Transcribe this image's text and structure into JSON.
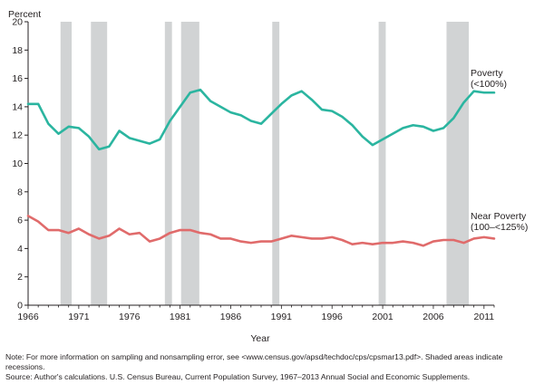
{
  "chart_data": {
    "type": "line",
    "ylabel": "Percent",
    "xlabel": "Year",
    "ylim": [
      0,
      20
    ],
    "xlim": [
      1966,
      2012
    ],
    "yticks": [
      0,
      2,
      4,
      6,
      8,
      10,
      12,
      14,
      16,
      18,
      20
    ],
    "xticks": [
      1966,
      1971,
      1976,
      1981,
      1986,
      1991,
      1996,
      2001,
      2006,
      2011
    ],
    "grid": false,
    "recessions": [
      [
        1969.2,
        1970.3
      ],
      [
        1972.2,
        1973.8
      ],
      [
        1979.5,
        1980.2
      ],
      [
        1981.1,
        1982.9
      ],
      [
        1990.1,
        1990.8
      ],
      [
        2000.6,
        2001.3
      ],
      [
        2007.3,
        2009.5
      ]
    ],
    "colors": {
      "poverty": "#2bb5a0",
      "near_poverty": "#e06b6b",
      "recession": "#d1d3d4"
    },
    "x": [
      1966,
      1967,
      1968,
      1969,
      1970,
      1971,
      1972,
      1973,
      1974,
      1975,
      1976,
      1977,
      1978,
      1979,
      1980,
      1981,
      1982,
      1983,
      1984,
      1985,
      1986,
      1987,
      1988,
      1989,
      1990,
      1991,
      1992,
      1993,
      1994,
      1995,
      1996,
      1997,
      1998,
      1999,
      2000,
      2001,
      2002,
      2003,
      2004,
      2005,
      2006,
      2007,
      2008,
      2009,
      2010,
      2011,
      2012
    ],
    "series": [
      {
        "name": "Poverty",
        "label_lines": [
          "Poverty",
          "(<100%)"
        ],
        "values": [
          14.2,
          14.2,
          12.8,
          12.1,
          12.6,
          12.5,
          11.9,
          11.0,
          11.2,
          12.3,
          11.8,
          11.6,
          11.4,
          11.7,
          13.0,
          14.0,
          15.0,
          15.2,
          14.4,
          14.0,
          13.6,
          13.4,
          13.0,
          12.8,
          13.5,
          14.2,
          14.8,
          15.1,
          14.5,
          13.8,
          13.7,
          13.3,
          12.7,
          11.9,
          11.3,
          11.7,
          12.1,
          12.5,
          12.7,
          12.6,
          12.3,
          12.5,
          13.2,
          14.3,
          15.1,
          15.0,
          15.0
        ]
      },
      {
        "name": "Near Poverty",
        "label_lines": [
          "Near Poverty",
          "(100–<125%)"
        ],
        "values": [
          6.3,
          5.9,
          5.3,
          5.3,
          5.1,
          5.4,
          5.0,
          4.7,
          4.9,
          5.4,
          5.0,
          5.1,
          4.5,
          4.7,
          5.1,
          5.3,
          5.3,
          5.1,
          5.0,
          4.7,
          4.7,
          4.5,
          4.4,
          4.5,
          4.5,
          4.7,
          4.9,
          4.8,
          4.7,
          4.7,
          4.8,
          4.6,
          4.3,
          4.4,
          4.3,
          4.4,
          4.4,
          4.5,
          4.4,
          4.2,
          4.5,
          4.6,
          4.6,
          4.4,
          4.7,
          4.8,
          4.7
        ]
      }
    ]
  },
  "notes": {
    "note": "Note: For more information on sampling and nonsampling error, see <www.census.gov/apsd/techdoc/cps/cpsmar13.pdf>. Shaded areas indicate recessions.",
    "source": "Source: Author's calculations. U.S. Census Bureau, Current Population Survey, 1967–2013 Annual Social and Economic Supplements."
  }
}
